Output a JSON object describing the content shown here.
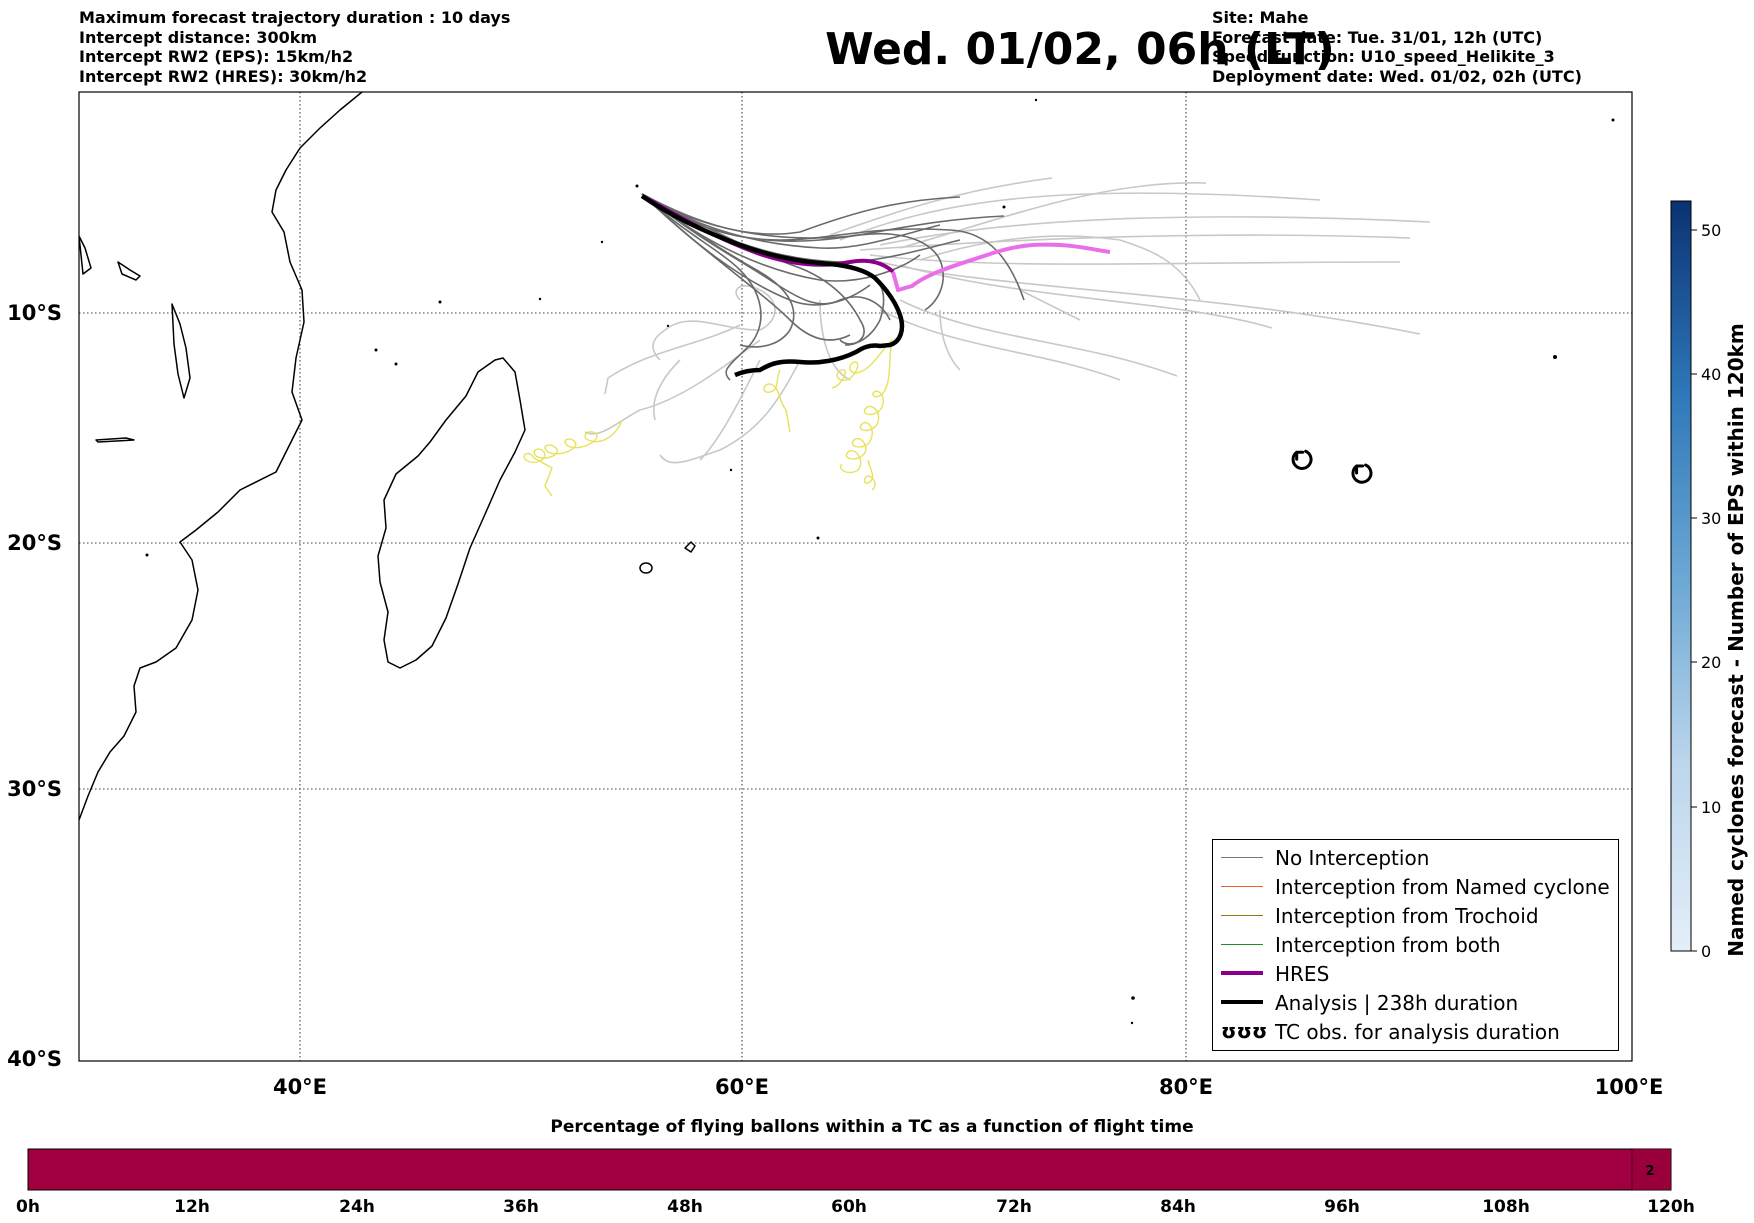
{
  "header_left": [
    "Maximum forecast trajectory duration : 10 days",
    "Intercept distance: 300km",
    "Intercept RW2 (EPS):  15km/h2",
    "Intercept RW2 (HRES): 30km/h2"
  ],
  "header_right": [
    "Site: Mahe",
    "Forecast date: Tue. 31/01, 12h (UTC)",
    "Speed function: U10_speed_Helikite_3",
    "Deployment date: Wed. 01/02, 02h (UTC)"
  ],
  "title": "Wed. 01/02, 06h (LT)",
  "map": {
    "lon_ticks": [
      "40°E",
      "60°E",
      "80°E",
      "100°E"
    ],
    "lat_ticks": [
      "10°S",
      "20°S",
      "30°S",
      "40°S"
    ],
    "lon_range": [
      30,
      100
    ],
    "lat_range": [
      -40,
      -0.7
    ]
  },
  "legend": {
    "items": [
      {
        "label": "No Interception",
        "color": "#777777"
      },
      {
        "label": "Interception from Named cyclone",
        "color": "#e8632a"
      },
      {
        "label": "Interception from Trochoid",
        "color": "#8a7a1a"
      },
      {
        "label": "Interception from both",
        "color": "#2a8a2a"
      },
      {
        "label": "HRES",
        "color": "#8b008b"
      },
      {
        "label": "Analysis | 238h duration",
        "color": "#000000"
      },
      {
        "label": "TC obs. for analysis duration",
        "color": "#000000"
      }
    ],
    "tc_symbol": "ʊʊʊ"
  },
  "colorbar_right": {
    "label": "Named cyclones forecast - Number of EPS within 120km",
    "ticks": [
      "0",
      "10",
      "20",
      "30",
      "40",
      "50"
    ],
    "range": [
      0,
      52
    ]
  },
  "colorbar_bottom": {
    "title": "Percentage of flying ballons within a TC as a function of flight time",
    "ticks": [
      "0h",
      "12h",
      "24h",
      "36h",
      "48h",
      "60h",
      "72h",
      "84h",
      "96h",
      "108h",
      "120h"
    ],
    "fill_color": "#a00040",
    "value_label": "2",
    "value_fraction_start": 0.98
  },
  "tc_obs_markers": [
    {
      "lon": 85.2,
      "lat": -16.4
    },
    {
      "lon": 87.9,
      "lat": -17.0
    }
  ]
}
